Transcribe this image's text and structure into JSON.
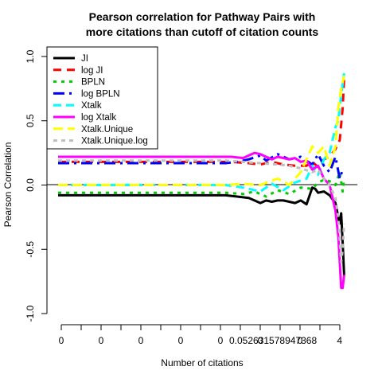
{
  "chart_data": {
    "type": "line",
    "title": [
      "Pearson correlation for Pathway Pairs with",
      "more citations than cutoff of citation counts"
    ],
    "xlabel": "Number of citations",
    "ylabel": "Pearson Correlation",
    "ylim": [
      -1.0,
      1.0
    ],
    "y_ticks": [
      "1.0",
      "0.5",
      "0.0",
      "-0.5",
      "-1.0"
    ],
    "y_tick_values": [
      1.0,
      0.5,
      0.0,
      -0.5,
      -1.0
    ],
    "x_ticks": [
      "0",
      "0",
      "0",
      "0",
      "0",
      "0",
      "0",
      "0.052631578947368",
      "4"
    ],
    "x_tick_count": 15,
    "x_range": [
      0,
      1
    ],
    "hline": 0,
    "legend_position": "top-left",
    "series": [
      {
        "name": "JI",
        "color": "#000000",
        "dash": "solid",
        "x": [
          0,
          0.58,
          0.62,
          0.66,
          0.68,
          0.7,
          0.72,
          0.74,
          0.76,
          0.78,
          0.8,
          0.82,
          0.84,
          0.86,
          0.88,
          0.89,
          0.9,
          0.92,
          0.94,
          0.95,
          0.96,
          0.97,
          0.975,
          0.98,
          0.985,
          0.99
        ],
        "y": [
          -0.08,
          -0.08,
          -0.09,
          -0.1,
          -0.12,
          -0.14,
          -0.12,
          -0.13,
          -0.12,
          -0.12,
          -0.13,
          -0.14,
          -0.12,
          -0.15,
          -0.02,
          -0.03,
          -0.06,
          -0.05,
          -0.08,
          -0.11,
          -0.14,
          -0.25,
          -0.3,
          -0.22,
          -0.45,
          -0.7
        ]
      },
      {
        "name": "log JI",
        "color": "#ff0000",
        "dash": "10,7",
        "x": [
          0,
          0.6,
          0.66,
          0.7,
          0.74,
          0.78,
          0.82,
          0.86,
          0.88,
          0.9,
          0.92,
          0.94,
          0.96,
          0.975,
          0.985,
          0.99
        ],
        "y": [
          0.18,
          0.18,
          0.17,
          0.16,
          0.18,
          0.16,
          0.15,
          0.15,
          0.18,
          0.14,
          0.2,
          0.22,
          0.28,
          0.35,
          0.6,
          0.83
        ]
      },
      {
        "name": "BPLN",
        "color": "#00cc00",
        "dash": "4,6",
        "x": [
          0,
          0.58,
          0.64,
          0.68,
          0.72,
          0.76,
          0.8,
          0.84,
          0.88,
          0.9,
          0.92,
          0.94,
          0.96,
          0.975,
          0.985,
          0.99
        ],
        "y": [
          -0.06,
          -0.06,
          -0.07,
          -0.05,
          -0.09,
          -0.04,
          -0.07,
          -0.02,
          -0.03,
          0.02,
          0.04,
          0.03,
          0.0,
          0.1,
          -0.05,
          0.05
        ]
      },
      {
        "name": "log BPLN",
        "color": "#0000ff",
        "dash": "14,6,3,6",
        "x": [
          0,
          0.58,
          0.62,
          0.66,
          0.7,
          0.72,
          0.76,
          0.8,
          0.84,
          0.88,
          0.9,
          0.92,
          0.94,
          0.96,
          0.975,
          0.985,
          0.99
        ],
        "y": [
          0.17,
          0.17,
          0.18,
          0.2,
          0.23,
          0.19,
          0.24,
          0.2,
          0.22,
          0.16,
          0.24,
          0.15,
          0.1,
          0.22,
          0.05,
          0.12,
          0.13
        ]
      },
      {
        "name": "Xtalk",
        "color": "#00ffff",
        "dash": "10,6",
        "x": [
          0,
          0.58,
          0.64,
          0.7,
          0.74,
          0.78,
          0.82,
          0.86,
          0.88,
          0.9,
          0.92,
          0.94,
          0.96,
          0.97,
          0.98,
          0.99
        ],
        "y": [
          0.0,
          0.0,
          -0.02,
          -0.05,
          0.01,
          -0.04,
          0.02,
          0.05,
          0.15,
          0.08,
          0.2,
          0.25,
          0.45,
          0.5,
          0.7,
          0.87
        ]
      },
      {
        "name": "log Xtalk",
        "color": "#ff00ff",
        "dash": "solid",
        "x": [
          0,
          0.6,
          0.64,
          0.68,
          0.7,
          0.72,
          0.74,
          0.76,
          0.78,
          0.8,
          0.82,
          0.84,
          0.86,
          0.88,
          0.9,
          0.92,
          0.94,
          0.96,
          0.97,
          0.98,
          0.985,
          0.99
        ],
        "y": [
          0.22,
          0.22,
          0.21,
          0.25,
          0.24,
          0.22,
          0.2,
          0.22,
          0.21,
          0.2,
          0.21,
          0.18,
          0.19,
          0.12,
          0.15,
          0.05,
          0.0,
          -0.2,
          -0.4,
          -0.8,
          -0.8,
          -0.7
        ]
      },
      {
        "name": "Xtalk.Unique",
        "color": "#ffff00",
        "dash": "12,6",
        "x": [
          0,
          0.58,
          0.64,
          0.7,
          0.76,
          0.8,
          0.84,
          0.86,
          0.88,
          0.9,
          0.92,
          0.94,
          0.96,
          0.97,
          0.98,
          0.99
        ],
        "y": [
          0.0,
          0.0,
          0.01,
          0.0,
          0.05,
          0.0,
          0.1,
          0.2,
          0.3,
          0.25,
          0.3,
          0.15,
          0.3,
          0.6,
          0.75,
          0.85
        ]
      },
      {
        "name": "Xtalk.Unique.log",
        "color": "#bebebe",
        "dash": "5,5",
        "x": [
          0,
          0.58,
          0.64,
          0.7,
          0.76,
          0.8,
          0.84,
          0.88,
          0.9,
          0.92,
          0.94,
          0.96,
          0.97,
          0.98,
          0.985,
          0.99
        ],
        "y": [
          0.19,
          0.19,
          0.18,
          0.17,
          0.16,
          0.15,
          0.13,
          0.1,
          0.12,
          0.05,
          0.0,
          -0.1,
          -0.25,
          -0.6,
          -0.5,
          -0.3
        ]
      }
    ]
  }
}
